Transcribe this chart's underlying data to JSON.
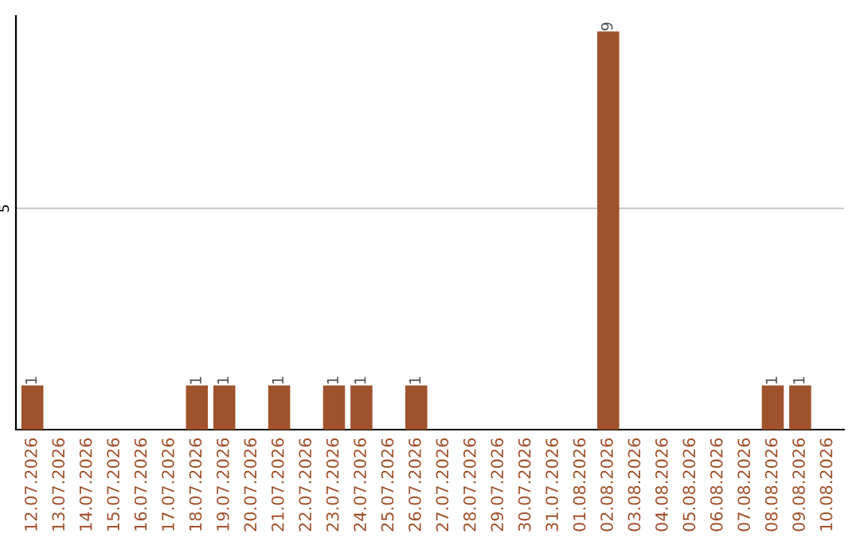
{
  "chart_data": {
    "type": "bar",
    "categories": [
      "12.07.2026",
      "13.07.2026",
      "14.07.2026",
      "15.07.2026",
      "16.07.2026",
      "17.07.2026",
      "18.07.2026",
      "19.07.2026",
      "20.07.2026",
      "21.07.2026",
      "22.07.2026",
      "23.07.2026",
      "24.07.2026",
      "25.07.2026",
      "26.07.2026",
      "27.07.2026",
      "28.07.2026",
      "29.07.2026",
      "30.07.2026",
      "31.07.2026",
      "01.08.2026",
      "02.08.2026",
      "03.08.2026",
      "04.08.2026",
      "05.08.2026",
      "06.08.2026",
      "07.08.2026",
      "08.08.2026",
      "09.08.2026",
      "10.08.2026"
    ],
    "values": [
      1,
      0,
      0,
      0,
      0,
      0,
      1,
      1,
      0,
      1,
      0,
      1,
      1,
      0,
      1,
      0,
      0,
      0,
      0,
      0,
      0,
      9,
      0,
      0,
      0,
      0,
      0,
      1,
      1,
      0
    ],
    "value_labels": [
      "1",
      null,
      null,
      null,
      null,
      null,
      "1",
      "1",
      null,
      "1",
      null,
      "1",
      "1",
      null,
      "1",
      null,
      null,
      null,
      null,
      null,
      null,
      "9",
      null,
      null,
      null,
      null,
      null,
      "1",
      "1",
      null
    ],
    "color": "#a0522d",
    "ylim": [
      0,
      9.35
    ],
    "yticks": [
      {
        "value": 0,
        "label": null
      },
      5
    ],
    "grid": "y",
    "legend": false
  }
}
